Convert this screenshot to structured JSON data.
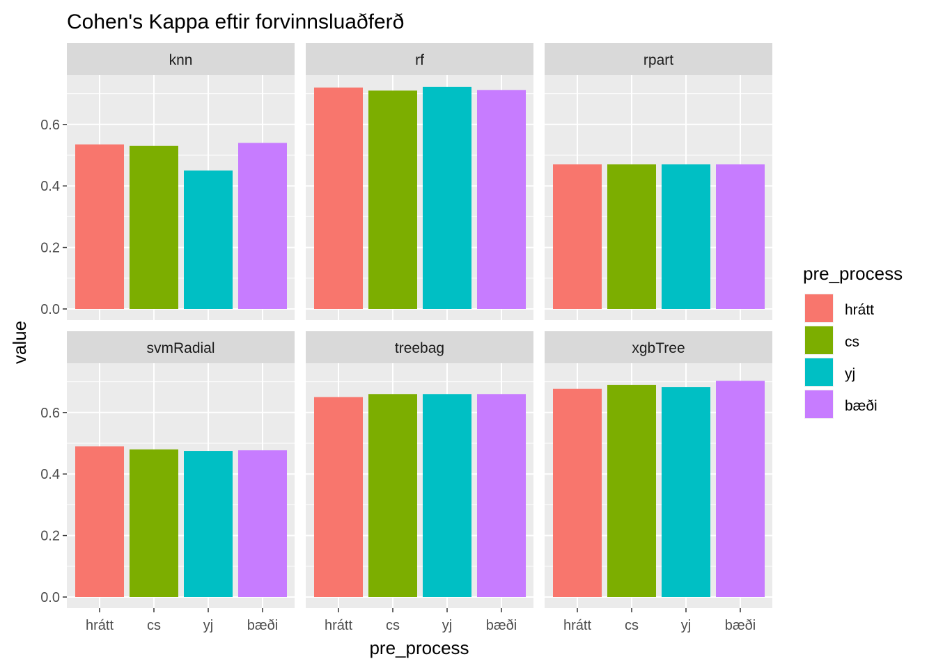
{
  "chart_data": {
    "type": "bar",
    "title": "Cohen's Kappa eftir forvinnsluaðferð",
    "xlabel": "pre_process",
    "ylabel": "value",
    "categories": [
      "hrátt",
      "cs",
      "yj",
      "bæði"
    ],
    "ylim": [
      0,
      0.7
    ],
    "yticks": [
      0.0,
      0.2,
      0.4,
      0.6
    ],
    "ytick_labels": [
      "0.0",
      "0.2",
      "0.4",
      "0.6"
    ],
    "facet_layout": "2 rows x 3 columns",
    "grid": true,
    "legend": {
      "title": "pre_process",
      "placement": "right",
      "entries": [
        "hrátt",
        "cs",
        "yj",
        "bæði"
      ],
      "colors": [
        "#F8766D",
        "#7CAE00",
        "#00BFC4",
        "#C77CFF"
      ]
    },
    "panel_background": "#EBEBEB",
    "strip_background": "#D9D9D9",
    "facets": [
      {
        "name": "knn",
        "values": [
          0.535,
          0.53,
          0.45,
          0.54
        ]
      },
      {
        "name": "rf",
        "values": [
          0.72,
          0.71,
          0.722,
          0.712
        ]
      },
      {
        "name": "rpart",
        "values": [
          0.47,
          0.47,
          0.47,
          0.47
        ]
      },
      {
        "name": "svmRadial",
        "values": [
          0.49,
          0.48,
          0.475,
          0.477
        ]
      },
      {
        "name": "treebag",
        "values": [
          0.65,
          0.66,
          0.66,
          0.66
        ]
      },
      {
        "name": "xgbTree",
        "values": [
          0.677,
          0.69,
          0.683,
          0.703
        ]
      }
    ]
  }
}
